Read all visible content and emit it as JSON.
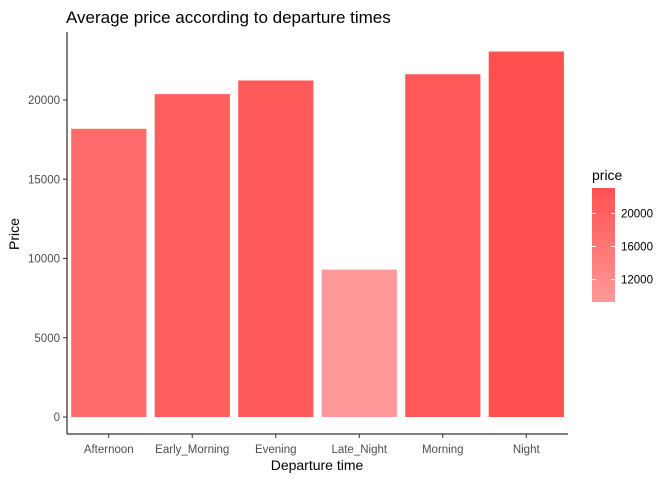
{
  "chart_data": {
    "type": "bar",
    "title": "Average price according to departure times",
    "xlabel": "Departure time",
    "ylabel": "Price",
    "categories": [
      "Afternoon",
      "Early_Morning",
      "Evening",
      "Late_Night",
      "Morning",
      "Night"
    ],
    "values": [
      18180,
      20370,
      21230,
      9300,
      21630,
      23060
    ],
    "ylim": [
      0,
      24200
    ],
    "yticks": [
      0,
      5000,
      10000,
      15000,
      20000
    ],
    "grid": false,
    "legend": {
      "title": "price",
      "placement": "right",
      "ticks": [
        12000,
        16000,
        20000
      ],
      "range": [
        9300,
        23060
      ],
      "color_low": "#ff9999",
      "color_high": "#ff5050"
    }
  }
}
